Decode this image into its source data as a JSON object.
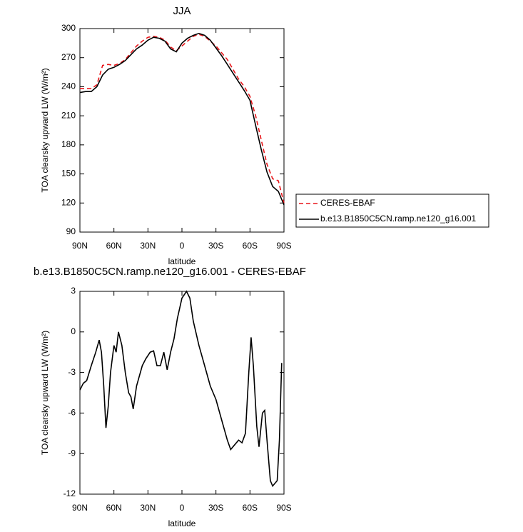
{
  "chart_data": [
    {
      "type": "line",
      "title": "JJA",
      "x_label": "latitude",
      "y_label": "TOA clearsky upward LW (W/m²)",
      "x": [
        90,
        85,
        80,
        75,
        70,
        65,
        60,
        55,
        50,
        45,
        40,
        35,
        30,
        25,
        20,
        15,
        10,
        5,
        0,
        -5,
        -10,
        -15,
        -20,
        -25,
        -30,
        -35,
        -40,
        -45,
        -50,
        -55,
        -60,
        -65,
        -70,
        -75,
        -80,
        -85,
        -90
      ],
      "series": [
        {
          "name": "CERES-EBAF",
          "color": "#e8171b",
          "style": "dashed",
          "values": [
            238,
            238,
            238,
            242,
            262,
            263,
            262,
            264,
            268,
            275,
            282,
            287,
            291,
            292,
            291,
            288,
            281,
            277,
            282,
            287,
            292,
            294,
            292,
            287,
            282,
            275,
            268,
            258,
            248,
            240,
            230,
            210,
            185,
            160,
            145,
            143,
            120
          ]
        },
        {
          "name": "b.e13.B1850C5CN.ramp.ne120_g16.001",
          "color": "#000000",
          "style": "solid",
          "values": [
            234,
            235,
            235,
            240,
            252,
            258,
            260,
            263,
            267,
            273,
            279,
            283,
            288,
            291,
            290,
            287,
            279,
            276,
            285,
            290,
            293,
            295,
            293,
            288,
            280,
            272,
            263,
            254,
            245,
            236,
            226,
            200,
            175,
            152,
            137,
            132,
            118
          ]
        }
      ],
      "xlim": [
        90,
        -90
      ],
      "xticks": [
        {
          "value": 90,
          "label": "90N"
        },
        {
          "value": 60,
          "label": "60N"
        },
        {
          "value": 30,
          "label": "30N"
        },
        0,
        {
          "value": -30,
          "label": "30S"
        },
        {
          "value": -60,
          "label": "60S"
        },
        {
          "value": -90,
          "label": "90S"
        }
      ],
      "ylim": [
        90,
        300
      ],
      "yticks": [
        90,
        120,
        150,
        180,
        210,
        240,
        270,
        300
      ],
      "legend": "right"
    },
    {
      "type": "line",
      "title": "b.e13.B1850C5CN.ramp.ne120_g16.001 - CERES-EBAF",
      "x_label": "latitude",
      "y_label": "TOA clearsky upward LW (W/m²)",
      "x": [
        90,
        87,
        84,
        80,
        76,
        73,
        71,
        69,
        67,
        65,
        63,
        60,
        58,
        56,
        53,
        50,
        47,
        45,
        43,
        40,
        35,
        32,
        28,
        25,
        22,
        19,
        16,
        13,
        10,
        7,
        4,
        0,
        -4,
        -7,
        -10,
        -15,
        -20,
        -25,
        -30,
        -35,
        -40,
        -43,
        -46,
        -50,
        -53,
        -56,
        -59,
        -61,
        -63,
        -66,
        -68,
        -71,
        -73,
        -75,
        -78,
        -80,
        -84,
        -86,
        -88
      ],
      "series": [
        {
          "color": "#000000",
          "style": "solid",
          "values": [
            -4.3,
            -3.8,
            -3.6,
            -2.5,
            -1.5,
            -0.6,
            -1.5,
            -4,
            -7.1,
            -5.5,
            -3,
            -1,
            -1.5,
            0,
            -1,
            -3,
            -4.5,
            -4.8,
            -5.7,
            -4,
            -2.5,
            -2,
            -1.5,
            -1.4,
            -2.5,
            -2.5,
            -1.5,
            -2.8,
            -1.5,
            -0.5,
            1,
            2.5,
            3,
            2.5,
            0.8,
            -1,
            -2.5,
            -4,
            -5,
            -6.5,
            -8,
            -8.7,
            -8.4,
            -8,
            -8.2,
            -7.5,
            -3,
            -0.4,
            -2.5,
            -7,
            -8.5,
            -6,
            -5.8,
            -8,
            -11,
            -11.4,
            -11,
            -8,
            -2.3
          ]
        }
      ],
      "xlim": [
        90,
        -90
      ],
      "xticks": [
        {
          "value": 90,
          "label": "90N"
        },
        {
          "value": 60,
          "label": "60N"
        },
        {
          "value": 30,
          "label": "30N"
        },
        0,
        {
          "value": -30,
          "label": "30S"
        },
        {
          "value": -60,
          "label": "60S"
        },
        {
          "value": -90,
          "label": "90S"
        }
      ],
      "ylim": [
        -12,
        3
      ],
      "yticks": [
        -12,
        -9,
        -6,
        -3,
        0,
        3
      ]
    }
  ]
}
